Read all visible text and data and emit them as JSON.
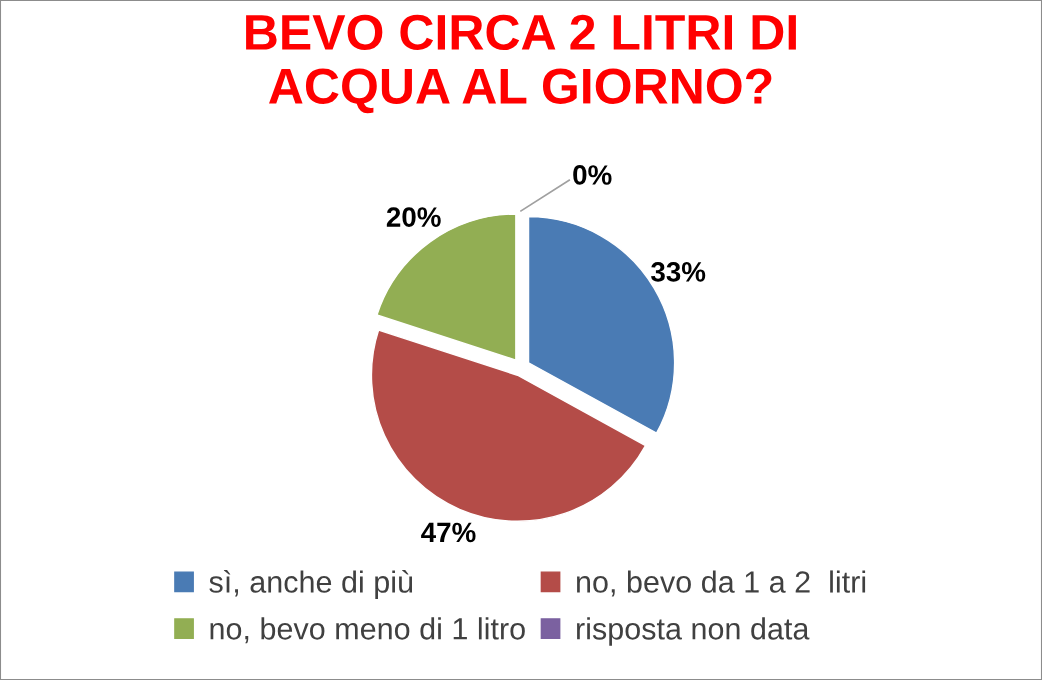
{
  "chart_data": {
    "type": "pie",
    "title": "BEVO CIRCA 2 LITRI DI ACQUA AL GIORNO?",
    "categories": [
      "sì, anche di più",
      "no, bevo da 1 a 2  litri",
      "no, bevo meno di 1 litro",
      "risposta non data"
    ],
    "values": [
      33,
      47,
      20,
      0
    ],
    "colors": [
      "#4a7bb4",
      "#b44c48",
      "#92ae53",
      "#7b61a0"
    ],
    "value_labels": [
      "33%",
      "47%",
      "20%",
      "0%"
    ],
    "legend": "bottom"
  }
}
